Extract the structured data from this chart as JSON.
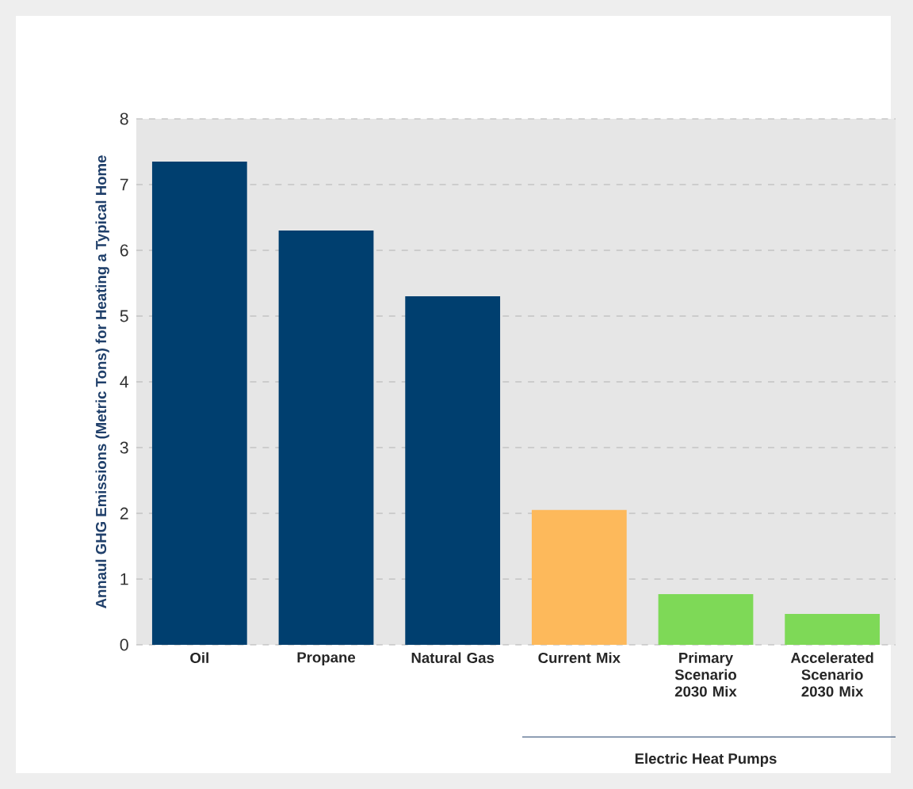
{
  "chart_data": {
    "type": "bar",
    "ylabel": "Annaul GHG Emissions (Metric Tons) for Heating a Typical Home",
    "categories": [
      "Oil",
      "Propane",
      "Natural Gas",
      "Current Mix",
      "Primary Scenario 2030 Mix",
      "Accelerated Scenario 2030 Mix"
    ],
    "values": [
      7.35,
      6.3,
      5.3,
      2.05,
      0.77,
      0.47
    ],
    "colors": [
      "#003f6f",
      "#003f6f",
      "#003f6f",
      "#fdb95b",
      "#7ed957",
      "#7ed957"
    ],
    "ylim": [
      0,
      8
    ],
    "yticks": [
      0,
      1,
      2,
      3,
      4,
      5,
      6,
      7,
      8
    ],
    "grid": "y",
    "annotations": [
      "Electric Heat Pumps"
    ]
  }
}
